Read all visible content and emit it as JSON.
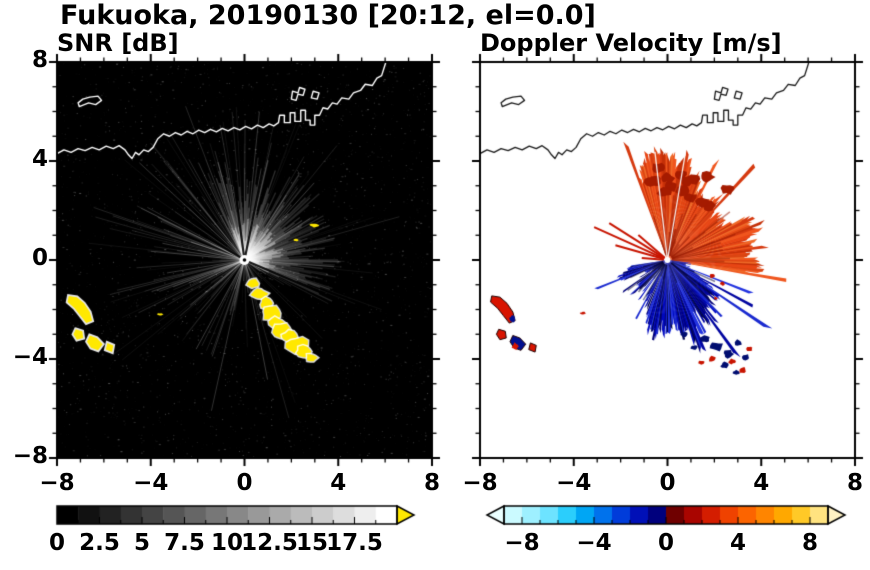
{
  "header": {
    "title": "Fukuoka, 20190130 [20:12, el=0.0]"
  },
  "chart_data": [
    {
      "type": "heatmap",
      "name": "snr",
      "title": "SNR [dB]",
      "xlim": [
        -8,
        8
      ],
      "ylim": [
        -8,
        8
      ],
      "xticks": [
        -8,
        -4,
        0,
        4,
        8
      ],
      "xtick_labels": [
        "−8",
        "−4",
        "0",
        "4",
        "8"
      ],
      "yticks": [
        8,
        4,
        0,
        -4,
        -8
      ],
      "ytick_labels": [
        "8",
        "4",
        "0",
        "−4",
        "−8"
      ],
      "minor_tick_step": 1,
      "background": "#000000",
      "radar_center": [
        0,
        0
      ],
      "colorbar": {
        "min": 0,
        "max": 20,
        "tick_values": [
          0,
          2.5,
          5,
          7.5,
          10,
          12.5,
          15,
          17.5
        ],
        "tick_labels": [
          "0",
          "2.5",
          "5",
          "7.5",
          "10",
          "12.5",
          "15",
          "17.5"
        ],
        "minor_step": 1.25,
        "segments": 16,
        "colors": [
          "#000000",
          "#ffffff"
        ],
        "over_arrow": "#ffe800"
      },
      "regions": [
        {
          "desc": "radial radar beams from center, brightest fan toward NE",
          "snr_dB": [
            0,
            10
          ]
        },
        {
          "desc": "ground clutter arc at west (x −7.5..−5.5, y −1.5..−3.8)",
          "snr_dB": "> 17.5"
        },
        {
          "desc": "clutter chain SE of radar from (0.3,−0.9) to (2.9,−4)",
          "snr_dB": "> 17.5"
        }
      ]
    },
    {
      "type": "heatmap",
      "name": "doppler",
      "title": "Doppler Velocity [m/s]",
      "xlim": [
        -8,
        8
      ],
      "ylim": [
        -8,
        8
      ],
      "xticks": [
        -8,
        -4,
        0,
        4,
        8
      ],
      "xtick_labels": [
        "−8",
        "−4",
        "0",
        "4",
        "8"
      ],
      "yticks": [
        8,
        4,
        0,
        -4,
        -8
      ],
      "ytick_labels": [
        "8",
        "4",
        "0",
        "−4",
        "−8"
      ],
      "minor_tick_step": 1,
      "background": "#ffffff",
      "colorbar": {
        "min": -9,
        "max": 9,
        "tick_values": [
          -8,
          -4,
          0,
          4,
          8
        ],
        "tick_labels": [
          "−8",
          "−4",
          "0",
          "4",
          "8"
        ],
        "minor_step": 1,
        "segments": 18,
        "stops": [
          [
            -9,
            "#e2ffff"
          ],
          [
            -7.5,
            "#9ef0ff"
          ],
          [
            -6,
            "#55dcff"
          ],
          [
            -5,
            "#00c0f8"
          ],
          [
            -4,
            "#008cf0"
          ],
          [
            -3,
            "#0058e8"
          ],
          [
            -2,
            "#0020cc"
          ],
          [
            -1,
            "#0000a2"
          ],
          [
            -0.1,
            "#000060"
          ],
          [
            0.1,
            "#540000"
          ],
          [
            1,
            "#900000"
          ],
          [
            2,
            "#c20a00"
          ],
          [
            3,
            "#e53000"
          ],
          [
            4,
            "#f85400"
          ],
          [
            5,
            "#ff7400"
          ],
          [
            6,
            "#ff9600"
          ],
          [
            7,
            "#ffb900"
          ],
          [
            8,
            "#ffd84e"
          ],
          [
            9,
            "#ffeeb2"
          ]
        ],
        "under_arrow": "#eaffff",
        "over_arrow": "#fff2c4"
      },
      "regions": [
        {
          "desc": "positive (outbound) velocity fan NE of radar",
          "velocity_ms": [
            2,
            8
          ],
          "angles_deg": [
            -10,
            110
          ]
        },
        {
          "desc": "negative (inbound) velocity fan S/SE of radar",
          "velocity_ms": [
            -8,
            -2
          ],
          "angles_deg": [
            188,
            352
          ]
        },
        {
          "desc": "aliased/clutter patches at west arc",
          "velocity_ms": "mixed +/−"
        }
      ]
    }
  ],
  "radar": {
    "coastline": [
      [
        -8,
        4.3
      ],
      [
        -7.7,
        4.45
      ],
      [
        -7.4,
        4.35
      ],
      [
        -7.1,
        4.5
      ],
      [
        -6.8,
        4.42
      ],
      [
        -6.5,
        4.55
      ],
      [
        -6.2,
        4.45
      ],
      [
        -5.9,
        4.6
      ],
      [
        -5.6,
        4.5
      ],
      [
        -5.35,
        4.62
      ],
      [
        -5.1,
        4.45
      ],
      [
        -4.95,
        4.25
      ],
      [
        -4.8,
        4.1
      ],
      [
        -4.65,
        4.35
      ],
      [
        -4.5,
        4.25
      ],
      [
        -4.3,
        4.45
      ],
      [
        -4.1,
        4.38
      ],
      [
        -3.9,
        4.55
      ],
      [
        -3.7,
        4.9
      ],
      [
        -3.45,
        5.1
      ],
      [
        -3.2,
        5.0
      ],
      [
        -2.95,
        5.15
      ],
      [
        -2.7,
        5.05
      ],
      [
        -2.45,
        5.2
      ],
      [
        -2.2,
        5.1
      ],
      [
        -1.95,
        5.25
      ],
      [
        -1.7,
        5.15
      ],
      [
        -1.45,
        5.28
      ],
      [
        -1.2,
        5.18
      ],
      [
        -0.95,
        5.32
      ],
      [
        -0.7,
        5.22
      ],
      [
        -0.45,
        5.35
      ],
      [
        -0.2,
        5.26
      ],
      [
        0.05,
        5.4
      ],
      [
        0.3,
        5.3
      ],
      [
        0.55,
        5.45
      ],
      [
        0.8,
        5.35
      ],
      [
        1.05,
        5.5
      ],
      [
        1.25,
        5.42
      ],
      [
        1.45,
        5.55
      ],
      [
        1.5,
        5.85
      ],
      [
        1.7,
        5.85
      ],
      [
        1.7,
        5.55
      ],
      [
        1.95,
        5.55
      ],
      [
        1.95,
        5.95
      ],
      [
        2.15,
        5.95
      ],
      [
        2.15,
        5.6
      ],
      [
        2.4,
        5.6
      ],
      [
        2.4,
        6.05
      ],
      [
        2.6,
        6.05
      ],
      [
        2.6,
        5.65
      ],
      [
        2.8,
        5.65
      ],
      [
        2.8,
        5.45
      ],
      [
        3.0,
        5.45
      ],
      [
        3.0,
        5.85
      ],
      [
        3.2,
        5.85
      ],
      [
        3.35,
        6.15
      ],
      [
        3.55,
        6.1
      ],
      [
        3.75,
        6.35
      ],
      [
        3.95,
        6.3
      ],
      [
        4.15,
        6.55
      ],
      [
        4.45,
        6.5
      ],
      [
        4.65,
        6.75
      ],
      [
        4.95,
        6.85
      ],
      [
        5.15,
        7.1
      ],
      [
        5.45,
        7.05
      ],
      [
        5.65,
        7.35
      ],
      [
        5.85,
        7.45
      ],
      [
        5.95,
        7.75
      ],
      [
        6.05,
        8.05
      ]
    ],
    "island": [
      [
        -7.05,
        6.2
      ],
      [
        -6.65,
        6.35
      ],
      [
        -6.35,
        6.28
      ],
      [
        -6.1,
        6.45
      ],
      [
        -6.25,
        6.62
      ],
      [
        -6.6,
        6.58
      ],
      [
        -6.9,
        6.5
      ],
      [
        -7.1,
        6.35
      ]
    ],
    "piers": [
      [
        [
          2.0,
          6.5
        ],
        [
          2.2,
          6.45
        ],
        [
          2.28,
          6.7
        ],
        [
          2.5,
          6.65
        ],
        [
          2.58,
          6.9
        ],
        [
          2.35,
          6.97
        ],
        [
          2.28,
          6.75
        ],
        [
          2.05,
          6.82
        ]
      ],
      [
        [
          2.85,
          6.55
        ],
        [
          3.1,
          6.5
        ],
        [
          3.18,
          6.75
        ],
        [
          2.93,
          6.82
        ]
      ]
    ],
    "left_patches": [
      [
        [
          -7.5,
          -1.45
        ],
        [
          -7.15,
          -1.5
        ],
        [
          -6.85,
          -1.75
        ],
        [
          -6.6,
          -2.1
        ],
        [
          -6.5,
          -2.45
        ],
        [
          -6.75,
          -2.55
        ],
        [
          -7.0,
          -2.25
        ],
        [
          -7.25,
          -1.95
        ],
        [
          -7.55,
          -1.7
        ]
      ],
      [
        [
          -7.2,
          -2.8
        ],
        [
          -6.92,
          -2.88
        ],
        [
          -6.88,
          -3.15
        ],
        [
          -7.15,
          -3.22
        ],
        [
          -7.3,
          -3.0
        ]
      ],
      [
        [
          -6.6,
          -3.05
        ],
        [
          -6.3,
          -3.15
        ],
        [
          -6.05,
          -3.4
        ],
        [
          -6.25,
          -3.65
        ],
        [
          -6.55,
          -3.55
        ],
        [
          -6.72,
          -3.3
        ]
      ],
      [
        [
          -5.85,
          -3.35
        ],
        [
          -5.6,
          -3.45
        ],
        [
          -5.65,
          -3.72
        ],
        [
          -5.92,
          -3.62
        ]
      ]
    ],
    "se_chain": [
      {
        "c": [
          0.35,
          -0.95
        ],
        "r": 0.13
      },
      {
        "c": [
          0.6,
          -1.35
        ],
        "r": 0.18
      },
      {
        "c": [
          0.95,
          -1.75
        ],
        "r": 0.16
      },
      {
        "c": [
          1.15,
          -2.15
        ],
        "r": 0.22
      },
      {
        "c": [
          1.35,
          -2.55
        ],
        "r": 0.18
      },
      {
        "c": [
          1.6,
          -2.85
        ],
        "r": 0.2
      },
      {
        "c": [
          1.95,
          -3.1
        ],
        "r": 0.17
      },
      {
        "c": [
          2.25,
          -3.45
        ],
        "r": 0.24
      },
      {
        "c": [
          2.55,
          -3.7
        ],
        "r": 0.18
      },
      {
        "c": [
          2.85,
          -3.95
        ],
        "r": 0.13
      }
    ],
    "yellow_specks": [
      [
        3.0,
        1.4,
        0.2,
        0.07
      ],
      [
        2.2,
        0.8,
        0.09,
        0.05
      ],
      [
        -3.6,
        -2.2,
        0.11,
        0.05
      ]
    ],
    "nw_rays": [
      {
        "angle": 141,
        "len": 1.6
      },
      {
        "angle": 149,
        "len": 2.9
      },
      {
        "angle": 157,
        "len": 3.4
      },
      {
        "angle": 165,
        "len": 2.3
      },
      {
        "angle": 176,
        "len": 1.1
      }
    ],
    "se_specks_navy": [
      [
        1.6,
        -3.2,
        0.14
      ],
      [
        2.1,
        -3.5,
        0.18
      ],
      [
        2.6,
        -3.8,
        0.15
      ],
      [
        3.0,
        -3.35,
        0.12
      ],
      [
        1.15,
        -3.55,
        0.1
      ],
      [
        2.45,
        -4.25,
        0.12
      ],
      [
        2.95,
        -4.55,
        0.1
      ],
      [
        3.35,
        -3.95,
        0.12
      ],
      [
        0.7,
        -3.0,
        0.1
      ]
    ],
    "se_specks_red": [
      [
        1.9,
        -4.0,
        0.11
      ],
      [
        2.75,
        -4.1,
        0.1
      ],
      [
        3.2,
        -4.45,
        0.12
      ],
      [
        1.45,
        -4.15,
        0.09
      ],
      [
        3.5,
        -3.6,
        0.09
      ]
    ],
    "blue_red_specks": [
      [
        1.9,
        -0.65,
        0.1
      ],
      [
        2.35,
        -0.95,
        0.09
      ],
      [
        2.05,
        -1.55,
        0.08
      ]
    ],
    "dop_specks_red": [
      [
        -3.6,
        -2.15,
        0.12,
        0.05
      ]
    ],
    "dop_patch_fill": [
      "#d81400",
      "#d81400",
      "#000f90",
      "#d81400"
    ],
    "dop_patch_extras": [
      {
        "c": [
          -6.62,
          -2.38
        ],
        "r": 0.13,
        "color": "#000f90"
      },
      {
        "c": [
          -6.5,
          -3.5
        ],
        "r": 0.14,
        "color": "#d81400"
      }
    ],
    "fans": {
      "positive": {
        "a0": -10,
        "a1": 110,
        "r0": 3.0,
        "rmin": 1.9,
        "rmax": 4.35,
        "walk": 0.85,
        "spike": 0.06
      },
      "negative": {
        "a0": 188,
        "a1": 352,
        "r0": 1.8,
        "rmin": 0.8,
        "rmax": 3.0,
        "walk": 0.6,
        "spike": 0.05,
        "weak_sector": [
          203,
          247
        ],
        "strong_sector": [
          288,
          338
        ],
        "strong_gain": 1.28
      }
    },
    "snr_beams": {
      "haze_a0": -25,
      "haze_a1": 115,
      "nw_a0": 100,
      "nw_a1": 200,
      "sw_a0": 195,
      "sw_a1": 255,
      "block_rays": [
        78,
        98,
        150,
        338
      ]
    },
    "colors": {
      "snr_clutter": "#ffe800",
      "dop_positive": [
        "#e84615",
        "#d63a10",
        "#f0561e",
        "#c43008",
        "#ef6a28",
        "#db4512"
      ],
      "dop_positive_dark": "#a51b00",
      "dop_negative": [
        "#0009c0",
        "#000078",
        "#1a2ad0",
        "#000550",
        "#2233e0",
        "#0004a0"
      ],
      "dop_ray_red": "#c81400",
      "coast_snr": "#ffffff",
      "coast_dop": "#1a1a1a"
    }
  }
}
